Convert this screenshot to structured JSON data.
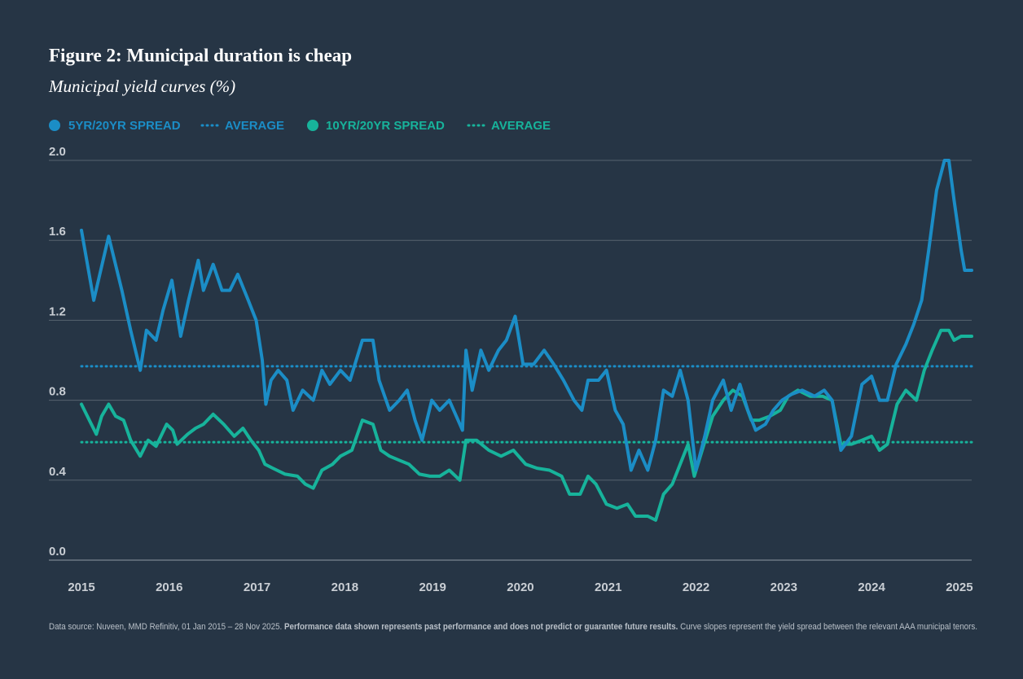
{
  "chart_data": {
    "type": "line",
    "title": "Figure 2: Municipal duration is cheap",
    "subtitle": "Municipal yield curves (%)",
    "xlim": [
      2015,
      2025.14
    ],
    "xticks": [
      2015,
      2016,
      2017,
      2018,
      2019,
      2020,
      2021,
      2022,
      2023,
      2024,
      2025
    ],
    "ylim": [
      0,
      2
    ],
    "yticks": [
      {
        "value": 0,
        "label": "0.0"
      },
      0.4,
      0.8,
      1.2,
      1.6,
      {
        "value": 2,
        "label": "2.0"
      }
    ],
    "grid": true,
    "series": [
      {
        "name": "5YR/20YR SPREAD",
        "color": "#1b8dc6",
        "x": [
          2015.0,
          2015.14,
          2015.31,
          2015.46,
          2015.56,
          2015.67,
          2015.74,
          2015.85,
          2015.93,
          2016.03,
          2016.13,
          2016.22,
          2016.33,
          2016.39,
          2016.5,
          2016.6,
          2016.69,
          2016.78,
          2016.9,
          2016.99,
          2017.06,
          2017.1,
          2017.16,
          2017.24,
          2017.34,
          2017.41,
          2017.52,
          2017.64,
          2017.74,
          2017.83,
          2017.95,
          2018.06,
          2018.2,
          2018.32,
          2018.39,
          2018.51,
          2018.62,
          2018.71,
          2018.8,
          2018.88,
          2018.99,
          2019.08,
          2019.19,
          2019.29,
          2019.34,
          2019.38,
          2019.45,
          2019.55,
          2019.64,
          2019.75,
          2019.84,
          2019.94,
          2020.03,
          2020.15,
          2020.27,
          2020.38,
          2020.49,
          2020.61,
          2020.7,
          2020.77,
          2020.89,
          2020.98,
          2021.08,
          2021.17,
          2021.26,
          2021.35,
          2021.45,
          2021.54,
          2021.63,
          2021.73,
          2021.82,
          2021.91,
          2022.0,
          2022.1,
          2022.19,
          2022.31,
          2022.4,
          2022.5,
          2022.59,
          2022.68,
          2022.79,
          2022.88,
          2022.98,
          2023.09,
          2023.21,
          2023.35,
          2023.46,
          2023.55,
          2023.65,
          2023.77,
          2023.89,
          2024.0,
          2024.09,
          2024.18,
          2024.28,
          2024.39,
          2024.48,
          2024.57,
          2024.65,
          2024.74,
          2024.83,
          2024.88,
          2024.94,
          2025.02,
          2025.06,
          2025.14
        ],
        "values": [
          1.65,
          1.3,
          1.62,
          1.35,
          1.15,
          0.95,
          1.15,
          1.1,
          1.25,
          1.4,
          1.12,
          1.3,
          1.5,
          1.35,
          1.48,
          1.35,
          1.35,
          1.43,
          1.3,
          1.2,
          1.0,
          0.78,
          0.9,
          0.95,
          0.9,
          0.75,
          0.85,
          0.8,
          0.95,
          0.88,
          0.95,
          0.9,
          1.1,
          1.1,
          0.9,
          0.75,
          0.8,
          0.85,
          0.7,
          0.6,
          0.8,
          0.75,
          0.8,
          0.7,
          0.65,
          1.05,
          0.85,
          1.05,
          0.95,
          1.05,
          1.1,
          1.22,
          0.98,
          0.98,
          1.05,
          0.98,
          0.9,
          0.8,
          0.75,
          0.9,
          0.9,
          0.95,
          0.75,
          0.68,
          0.45,
          0.55,
          0.45,
          0.6,
          0.85,
          0.82,
          0.95,
          0.8,
          0.45,
          0.62,
          0.8,
          0.9,
          0.75,
          0.88,
          0.75,
          0.65,
          0.68,
          0.75,
          0.8,
          0.83,
          0.85,
          0.82,
          0.85,
          0.8,
          0.55,
          0.62,
          0.88,
          0.92,
          0.8,
          0.8,
          0.98,
          1.08,
          1.18,
          1.3,
          1.55,
          1.85,
          2.0,
          2.0,
          1.8,
          1.55,
          1.45,
          1.45
        ]
      },
      {
        "name": "10YR/20YR SPREAD",
        "color": "#17b39b",
        "x": [
          2015.0,
          2015.09,
          2015.17,
          2015.23,
          2015.31,
          2015.39,
          2015.48,
          2015.56,
          2015.67,
          2015.76,
          2015.85,
          2015.97,
          2016.04,
          2016.09,
          2016.21,
          2016.3,
          2016.39,
          2016.5,
          2016.62,
          2016.74,
          2016.84,
          2016.93,
          2017.02,
          2017.09,
          2017.18,
          2017.32,
          2017.46,
          2017.55,
          2017.64,
          2017.74,
          2017.86,
          2017.95,
          2018.08,
          2018.2,
          2018.32,
          2018.41,
          2018.51,
          2018.62,
          2018.73,
          2018.85,
          2018.97,
          2019.08,
          2019.19,
          2019.31,
          2019.38,
          2019.5,
          2019.64,
          2019.78,
          2019.92,
          2020.06,
          2020.19,
          2020.33,
          2020.47,
          2020.56,
          2020.68,
          2020.77,
          2020.86,
          2020.98,
          2021.1,
          2021.22,
          2021.31,
          2021.45,
          2021.54,
          2021.63,
          2021.73,
          2021.82,
          2021.91,
          2021.98,
          2022.07,
          2022.19,
          2022.31,
          2022.42,
          2022.53,
          2022.63,
          2022.72,
          2022.84,
          2022.96,
          2023.05,
          2023.16,
          2023.3,
          2023.44,
          2023.55,
          2023.65,
          2023.77,
          2023.89,
          2024.0,
          2024.09,
          2024.18,
          2024.29,
          2024.39,
          2024.51,
          2024.6,
          2024.69,
          2024.79,
          2024.88,
          2024.94,
          2025.02,
          2025.14
        ],
        "values": [
          0.78,
          0.7,
          0.63,
          0.72,
          0.78,
          0.72,
          0.7,
          0.6,
          0.52,
          0.6,
          0.57,
          0.68,
          0.65,
          0.58,
          0.63,
          0.66,
          0.68,
          0.73,
          0.68,
          0.62,
          0.66,
          0.6,
          0.55,
          0.48,
          0.46,
          0.43,
          0.42,
          0.38,
          0.36,
          0.45,
          0.48,
          0.52,
          0.55,
          0.7,
          0.68,
          0.55,
          0.52,
          0.5,
          0.48,
          0.43,
          0.42,
          0.42,
          0.45,
          0.4,
          0.6,
          0.6,
          0.55,
          0.52,
          0.55,
          0.48,
          0.46,
          0.45,
          0.42,
          0.33,
          0.33,
          0.42,
          0.38,
          0.28,
          0.26,
          0.28,
          0.22,
          0.22,
          0.2,
          0.33,
          0.38,
          0.48,
          0.58,
          0.42,
          0.55,
          0.72,
          0.8,
          0.85,
          0.82,
          0.7,
          0.7,
          0.72,
          0.75,
          0.82,
          0.85,
          0.82,
          0.82,
          0.8,
          0.58,
          0.58,
          0.6,
          0.62,
          0.55,
          0.58,
          0.78,
          0.85,
          0.8,
          0.95,
          1.05,
          1.15,
          1.15,
          1.1,
          1.12,
          1.12
        ]
      }
    ],
    "averages": [
      {
        "name": "AVERAGE",
        "color": "#1b8dc6",
        "value": 0.97
      },
      {
        "name": "AVERAGE",
        "color": "#17b39b",
        "value": 0.59
      }
    ],
    "footnote": {
      "source": "Data source: Nuveen, MMD Refinitiv, 01 Jan 2015 – 28 Nov 2025.",
      "disclaimer": "Performance data shown represents past performance and does not predict or guarantee future results.",
      "note": "Curve slopes represent the yield spread between the relevant AAA municipal tenors."
    }
  }
}
